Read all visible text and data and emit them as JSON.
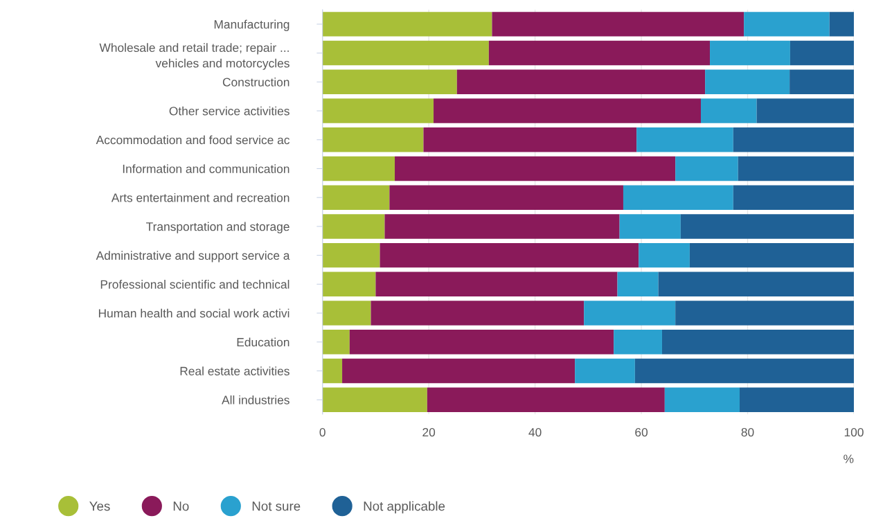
{
  "chart_data": {
    "type": "bar",
    "orientation": "horizontal",
    "stacked": true,
    "xlabel": "%",
    "categories": [
      "Manufacturing",
      "Wholesale and retail trade; repair ...\nvehicles and motorcycles",
      "Construction",
      "Other service activities",
      "Accommodation and food service ac",
      "Information and communication",
      "Arts entertainment and recreation",
      "Transportation and storage",
      "Administrative and support service a",
      "Professional scientific and technical",
      "Human health and social work activi",
      "Education",
      "Real estate activities",
      "All industries"
    ],
    "series": [
      {
        "name": "Yes",
        "color": "#a8bf38",
        "values": [
          31.9,
          31.3,
          25.3,
          20.9,
          19.0,
          13.6,
          12.6,
          11.7,
          10.8,
          10.0,
          9.1,
          5.1,
          3.7,
          19.7
        ]
      },
      {
        "name": "No",
        "color": "#8a1a5a",
        "values": [
          47.4,
          41.6,
          46.7,
          50.3,
          40.1,
          52.8,
          44.0,
          44.2,
          48.7,
          45.5,
          40.1,
          49.7,
          43.8,
          44.7
        ]
      },
      {
        "name": "Not sure",
        "color": "#2aa1cf",
        "values": [
          16.1,
          15.1,
          15.9,
          10.5,
          18.2,
          11.8,
          20.7,
          11.5,
          9.6,
          7.7,
          17.2,
          9.1,
          11.3,
          14.1
        ]
      },
      {
        "name": "Not applicable",
        "color": "#1f6196",
        "values": [
          4.6,
          12.0,
          12.1,
          18.3,
          22.7,
          21.8,
          22.7,
          32.6,
          30.9,
          36.8,
          33.6,
          36.1,
          41.2,
          21.5
        ]
      }
    ],
    "xlim": [
      0,
      100
    ],
    "xticks": [
      0,
      20,
      40,
      60,
      80,
      100
    ],
    "grid": "x",
    "legend": "bottom"
  }
}
